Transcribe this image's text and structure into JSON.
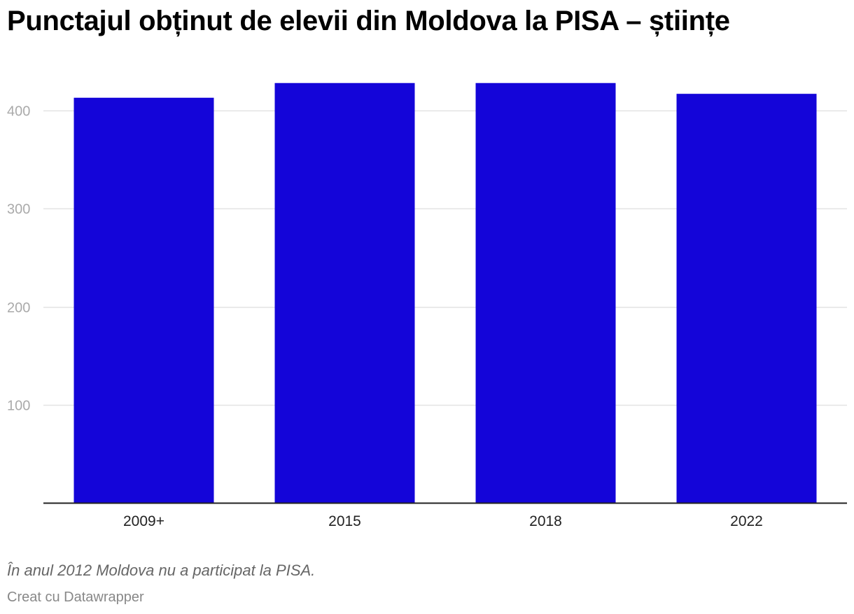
{
  "chart_data": {
    "type": "bar",
    "title": "Punctajul obținut de elevii din Moldova la PISA – științe",
    "categories": [
      "2009+",
      "2015",
      "2018",
      "2022"
    ],
    "values": [
      413,
      428,
      428,
      417
    ],
    "ylim": [
      0,
      430
    ],
    "yticks": [
      100,
      200,
      300,
      400
    ],
    "grid": true,
    "bar_color": "#1405d9",
    "note": "În anul 2012 Moldova nu a participat la PISA.",
    "credit": "Creat cu Datawrapper"
  }
}
